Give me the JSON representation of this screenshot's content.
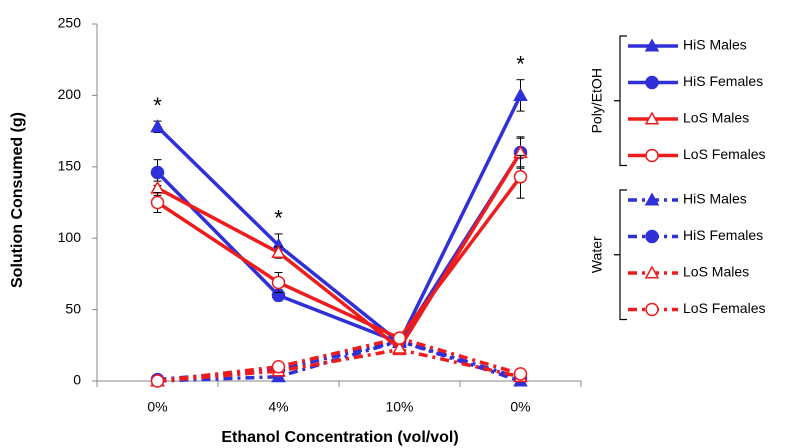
{
  "chart_data": {
    "type": "line",
    "xlabel": "Ethanol Concentration (vol/vol)",
    "ylabel": "Solution Consumed (g)",
    "categories": [
      "0%",
      "4%",
      "10%",
      "0%"
    ],
    "ylim": [
      0,
      250
    ],
    "yticks": [
      0,
      50,
      100,
      150,
      200,
      250
    ],
    "series": [
      {
        "name": "HiS Males",
        "color": "#3030d8",
        "marker": "triangle",
        "filled": true,
        "line_style": "solid",
        "values": [
          178,
          95,
          27,
          200
        ],
        "errors": [
          4,
          8,
          3,
          11
        ]
      },
      {
        "name": "HiS Females",
        "color": "#3030d8",
        "marker": "circle",
        "filled": true,
        "line_style": "solid",
        "values": [
          146,
          60,
          27,
          160
        ],
        "errors": [
          9,
          4,
          3,
          11
        ]
      },
      {
        "name": "LoS Males",
        "color": "#ee1c1c",
        "marker": "triangle",
        "filled": false,
        "line_style": "solid",
        "values": [
          135,
          90,
          23,
          160
        ],
        "errors": [
          5,
          4,
          3,
          10
        ]
      },
      {
        "name": "LoS Females",
        "color": "#ee1c1c",
        "marker": "circle",
        "filled": false,
        "line_style": "solid",
        "values": [
          125,
          69,
          30,
          143
        ],
        "errors": [
          7,
          7,
          3,
          15
        ]
      },
      {
        "name": "HiS Males",
        "color": "#3030d8",
        "marker": "triangle",
        "filled": true,
        "line_style": "dashed",
        "values": [
          0,
          3,
          28,
          0
        ]
      },
      {
        "name": "HiS Females",
        "color": "#3030d8",
        "marker": "circle",
        "filled": true,
        "line_style": "dashed",
        "values": [
          1,
          8,
          28,
          2
        ]
      },
      {
        "name": "LoS Males",
        "color": "#ee1c1c",
        "marker": "triangle",
        "filled": false,
        "line_style": "dashed",
        "values": [
          0,
          7,
          22,
          3
        ]
      },
      {
        "name": "LoS Females",
        "color": "#ee1c1c",
        "marker": "circle",
        "filled": false,
        "line_style": "dashed",
        "values": [
          0,
          10,
          30,
          5
        ]
      }
    ],
    "legend_groups": [
      {
        "label": "Poly/EtOH",
        "series": [
          0,
          1,
          2,
          3
        ]
      },
      {
        "label": "Water",
        "series": [
          4,
          5,
          6,
          7
        ]
      }
    ],
    "annotations": [
      {
        "text": "*",
        "category_index": 0
      },
      {
        "text": "*",
        "category_index": 1
      },
      {
        "text": "*",
        "category_index": 3
      }
    ]
  }
}
